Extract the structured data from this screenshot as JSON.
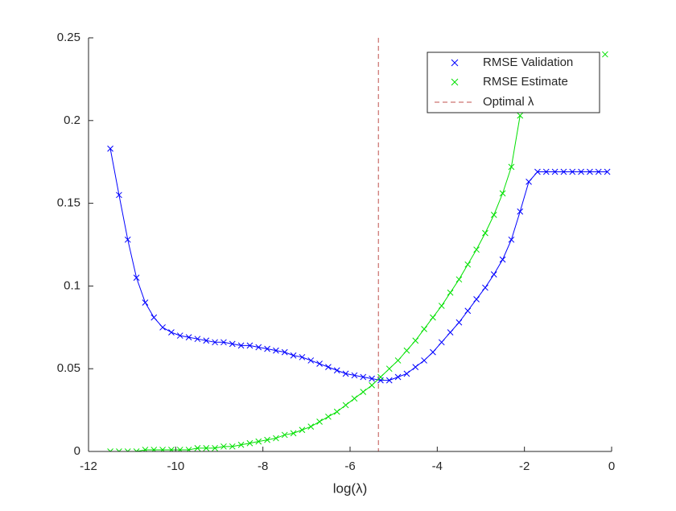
{
  "chart_data": {
    "type": "line",
    "xlabel": "log(λ)",
    "xlim": [
      -12,
      0
    ],
    "xticks": [
      -12,
      -10,
      -8,
      -6,
      -4,
      -2,
      0
    ],
    "ylim": [
      0,
      0.25
    ],
    "yticks": [
      0,
      0.05,
      0.1,
      0.15,
      0.2,
      0.25
    ],
    "legend": "upper right",
    "marker": "x",
    "series": [
      {
        "name": "RMSE Validation",
        "color": "#0000ff",
        "x": [
          -11.5,
          -11.3,
          -11.1,
          -10.9,
          -10.7,
          -10.5,
          -10.3,
          -10.1,
          -9.9,
          -9.7,
          -9.5,
          -9.3,
          -9.1,
          -8.9,
          -8.7,
          -8.5,
          -8.3,
          -8.1,
          -7.9,
          -7.7,
          -7.5,
          -7.3,
          -7.1,
          -6.9,
          -6.7,
          -6.5,
          -6.3,
          -6.1,
          -5.9,
          -5.7,
          -5.5,
          -5.3,
          -5.1,
          -4.9,
          -4.7,
          -4.5,
          -4.3,
          -4.1,
          -3.9,
          -3.7,
          -3.5,
          -3.3,
          -3.1,
          -2.9,
          -2.7,
          -2.5,
          -2.3,
          -2.1,
          -1.9,
          -1.7,
          -1.5,
          -1.3,
          -1.1,
          -0.9,
          -0.7,
          -0.5,
          -0.3,
          -0.1
        ],
        "values": [
          0.183,
          0.155,
          0.128,
          0.105,
          0.09,
          0.081,
          0.075,
          0.072,
          0.07,
          0.069,
          0.068,
          0.067,
          0.066,
          0.066,
          0.065,
          0.064,
          0.064,
          0.063,
          0.062,
          0.061,
          0.06,
          0.058,
          0.057,
          0.055,
          0.053,
          0.051,
          0.049,
          0.047,
          0.046,
          0.045,
          0.044,
          0.043,
          0.043,
          0.045,
          0.047,
          0.051,
          0.055,
          0.06,
          0.066,
          0.072,
          0.078,
          0.085,
          0.092,
          0.099,
          0.107,
          0.116,
          0.128,
          0.145,
          0.163,
          0.169,
          0.169,
          0.169,
          0.169,
          0.169,
          0.169,
          0.169,
          0.169,
          0.169
        ]
      },
      {
        "name": "RMSE Estimate",
        "color": "#00e000",
        "x": [
          -11.5,
          -11.3,
          -11.1,
          -10.9,
          -10.7,
          -10.5,
          -10.3,
          -10.1,
          -9.9,
          -9.7,
          -9.5,
          -9.3,
          -9.1,
          -8.9,
          -8.7,
          -8.5,
          -8.3,
          -8.1,
          -7.9,
          -7.7,
          -7.5,
          -7.3,
          -7.1,
          -6.9,
          -6.7,
          -6.5,
          -6.3,
          -6.1,
          -5.9,
          -5.7,
          -5.5,
          -5.3,
          -5.1,
          -4.9,
          -4.7,
          -4.5,
          -4.3,
          -4.1,
          -3.9,
          -3.7,
          -3.5,
          -3.3,
          -3.1,
          -2.9,
          -2.7,
          -2.5,
          -2.3,
          -2.1,
          -1.9,
          -0.15
        ],
        "values": [
          0,
          0,
          0,
          0,
          0.001,
          0.001,
          0.001,
          0.001,
          0.001,
          0.001,
          0.002,
          0.002,
          0.002,
          0.003,
          0.003,
          0.004,
          0.005,
          0.006,
          0.007,
          0.008,
          0.01,
          0.011,
          0.013,
          0.015,
          0.018,
          0.021,
          0.024,
          0.028,
          0.032,
          0.036,
          0.04,
          0.045,
          0.05,
          0.055,
          0.061,
          0.067,
          0.074,
          0.081,
          0.088,
          0.096,
          0.104,
          0.113,
          0.122,
          0.132,
          0.143,
          0.156,
          0.172,
          0.203,
          null,
          0.24
        ]
      }
    ],
    "vline": {
      "name": "Optimal λ",
      "x": -5.35,
      "color": "#c0504d"
    }
  }
}
